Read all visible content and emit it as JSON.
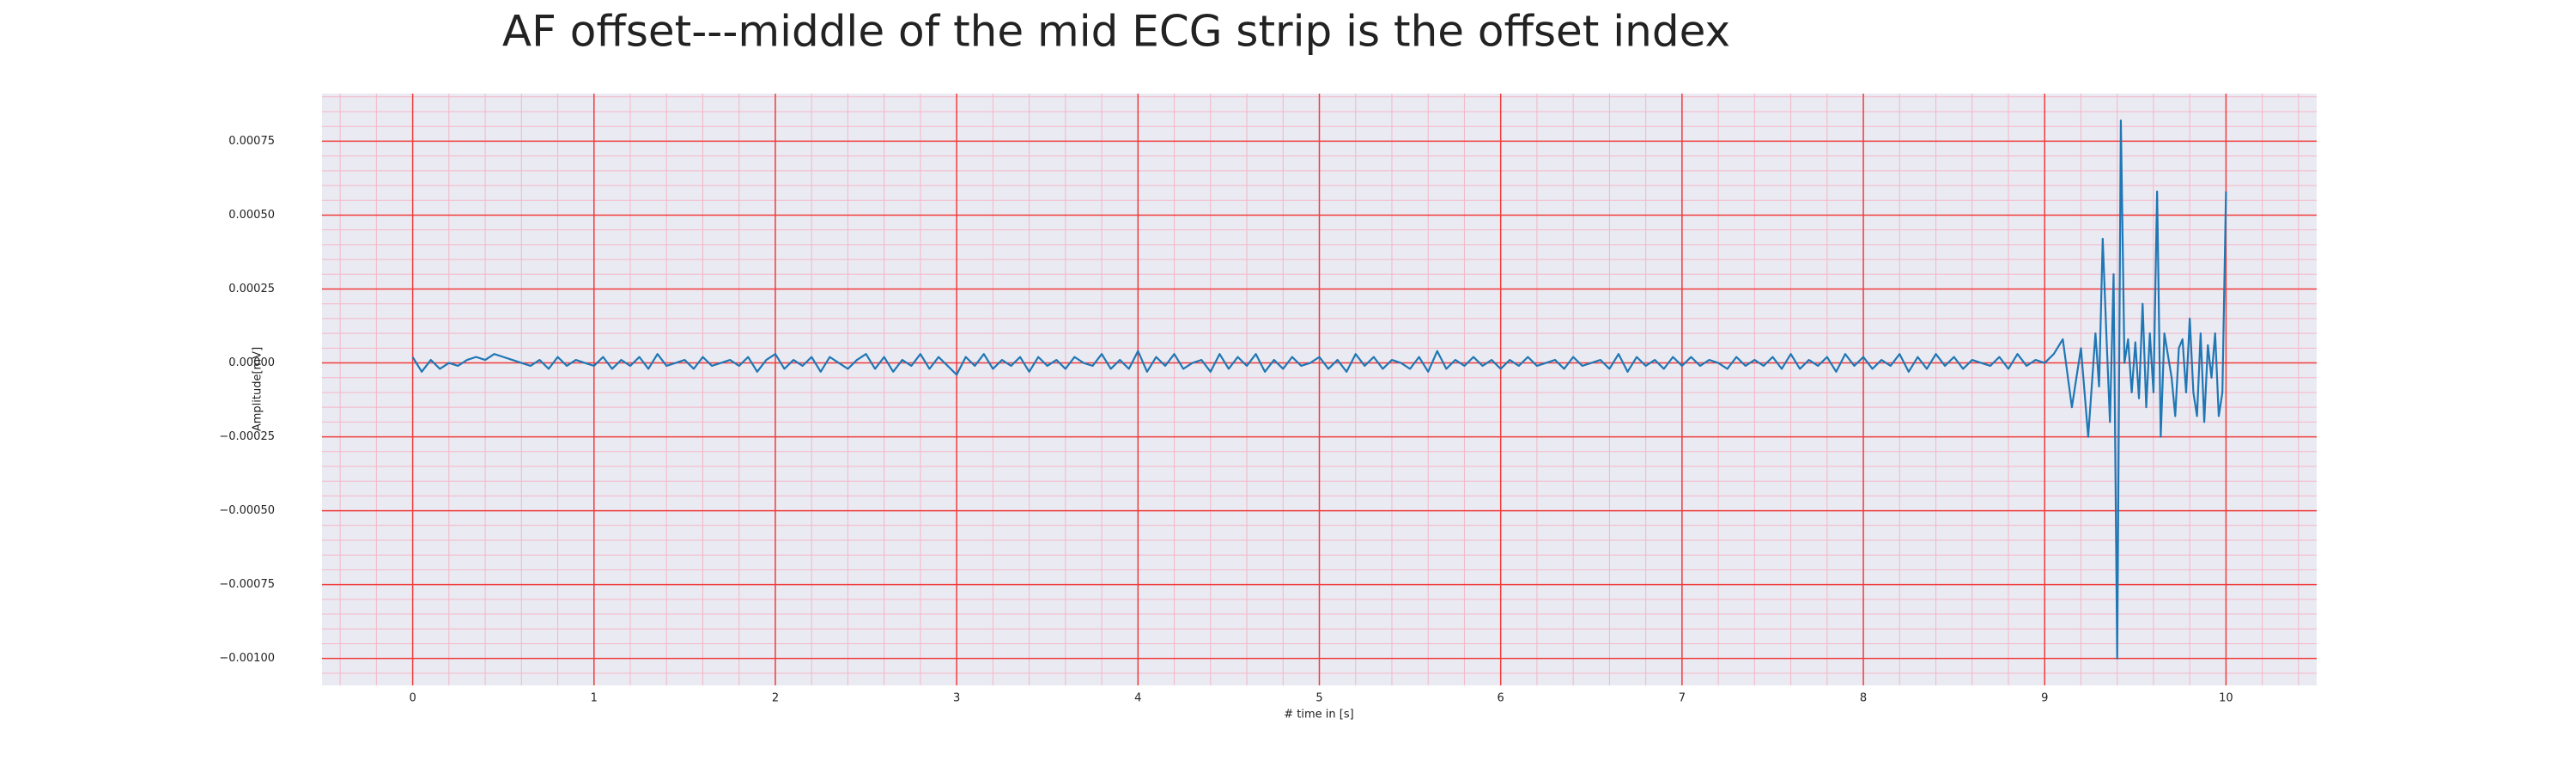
{
  "chart_data": {
    "type": "line",
    "title": "AF offset---middle of the mid ECG strip is the offset index",
    "xlabel": "# time in [s]",
    "ylabel": "Amplitude[mV]",
    "color": "#1f77b4",
    "grid": true,
    "xlim": [
      -0.5,
      10.5
    ],
    "ylim": [
      -0.001091,
      0.000911
    ],
    "xticks": [
      0,
      1,
      2,
      3,
      4,
      5,
      6,
      7,
      8,
      9,
      10
    ],
    "yticks": [
      {
        "value": -0.001,
        "label": "−0.00100"
      },
      {
        "value": -0.00075,
        "label": "−0.00075"
      },
      {
        "value": -0.0005,
        "label": "−0.00050"
      },
      {
        "value": -0.00025,
        "label": "−0.00025"
      },
      {
        "value": 0,
        "label": "0.00000"
      },
      {
        "value": 0.00025,
        "label": "0.00025"
      },
      {
        "value": 0.0005,
        "label": "0.00050"
      },
      {
        "value": 0.00075,
        "label": "0.00075"
      }
    ],
    "x": [
      0,
      0.05,
      0.1,
      0.15,
      0.2,
      0.25,
      0.3,
      0.35,
      0.4,
      0.45,
      0.5,
      0.55,
      0.6,
      0.65,
      0.7,
      0.75,
      0.8,
      0.85,
      0.9,
      0.95,
      1,
      1.05,
      1.1,
      1.15,
      1.2,
      1.25,
      1.3,
      1.35,
      1.4,
      1.45,
      1.5,
      1.55,
      1.6,
      1.65,
      1.7,
      1.75,
      1.8,
      1.85,
      1.9,
      1.95,
      2,
      2.05,
      2.1,
      2.15,
      2.2,
      2.25,
      2.3,
      2.35,
      2.4,
      2.45,
      2.5,
      2.55,
      2.6,
      2.65,
      2.7,
      2.75,
      2.8,
      2.85,
      2.9,
      2.95,
      3,
      3.05,
      3.1,
      3.15,
      3.2,
      3.25,
      3.3,
      3.35,
      3.4,
      3.45,
      3.5,
      3.55,
      3.6,
      3.65,
      3.7,
      3.75,
      3.8,
      3.85,
      3.9,
      3.95,
      4,
      4.05,
      4.1,
      4.15,
      4.2,
      4.25,
      4.3,
      4.35,
      4.4,
      4.45,
      4.5,
      4.55,
      4.6,
      4.65,
      4.7,
      4.75,
      4.8,
      4.85,
      4.9,
      4.95,
      5,
      5.05,
      5.1,
      5.15,
      5.2,
      5.25,
      5.3,
      5.35,
      5.4,
      5.45,
      5.5,
      5.55,
      5.6,
      5.65,
      5.7,
      5.75,
      5.8,
      5.85,
      5.9,
      5.95,
      6,
      6.05,
      6.1,
      6.15,
      6.2,
      6.25,
      6.3,
      6.35,
      6.4,
      6.45,
      6.5,
      6.55,
      6.6,
      6.65,
      6.7,
      6.75,
      6.8,
      6.85,
      6.9,
      6.95,
      7,
      7.05,
      7.1,
      7.15,
      7.2,
      7.25,
      7.3,
      7.35,
      7.4,
      7.45,
      7.5,
      7.55,
      7.6,
      7.65,
      7.7,
      7.75,
      7.8,
      7.85,
      7.9,
      7.95,
      8,
      8.05,
      8.1,
      8.15,
      8.2,
      8.25,
      8.3,
      8.35,
      8.4,
      8.45,
      8.5,
      8.55,
      8.6,
      8.65,
      8.7,
      8.75,
      8.8,
      8.85,
      8.9,
      8.95,
      9,
      9.05,
      9.1,
      9.15,
      9.2,
      9.24,
      9.28,
      9.3,
      9.32,
      9.34,
      9.36,
      9.38,
      9.4,
      9.42,
      9.44,
      9.46,
      9.48,
      9.5,
      9.52,
      9.54,
      9.56,
      9.58,
      9.6,
      9.62,
      9.64,
      9.66,
      9.7,
      9.72,
      9.74,
      9.76,
      9.78,
      9.8,
      9.82,
      9.84,
      9.86,
      9.88,
      9.9,
      9.92,
      9.94,
      9.96,
      9.98,
      10
    ],
    "values": [
      2e-05,
      -3e-05,
      1e-05,
      -2e-05,
      0,
      -1e-05,
      1e-05,
      2e-05,
      1e-05,
      3e-05,
      2e-05,
      1e-05,
      0,
      -1e-05,
      1e-05,
      -2e-05,
      2e-05,
      -1e-05,
      1e-05,
      0,
      -1e-05,
      2e-05,
      -2e-05,
      1e-05,
      -1e-05,
      2e-05,
      -2e-05,
      3e-05,
      -1e-05,
      0,
      1e-05,
      -2e-05,
      2e-05,
      -1e-05,
      0,
      1e-05,
      -1e-05,
      2e-05,
      -3e-05,
      1e-05,
      3e-05,
      -2e-05,
      1e-05,
      -1e-05,
      2e-05,
      -3e-05,
      2e-05,
      0,
      -2e-05,
      1e-05,
      3e-05,
      -2e-05,
      2e-05,
      -3e-05,
      1e-05,
      -1e-05,
      3e-05,
      -2e-05,
      2e-05,
      -1e-05,
      -4e-05,
      2e-05,
      -1e-05,
      3e-05,
      -2e-05,
      1e-05,
      -1e-05,
      2e-05,
      -3e-05,
      2e-05,
      -1e-05,
      1e-05,
      -2e-05,
      2e-05,
      0,
      -1e-05,
      3e-05,
      -2e-05,
      1e-05,
      -2e-05,
      4e-05,
      -3e-05,
      2e-05,
      -1e-05,
      3e-05,
      -2e-05,
      0,
      1e-05,
      -3e-05,
      3e-05,
      -2e-05,
      2e-05,
      -1e-05,
      3e-05,
      -3e-05,
      1e-05,
      -2e-05,
      2e-05,
      -1e-05,
      0,
      2e-05,
      -2e-05,
      1e-05,
      -3e-05,
      3e-05,
      -1e-05,
      2e-05,
      -2e-05,
      1e-05,
      0,
      -2e-05,
      2e-05,
      -3e-05,
      4e-05,
      -2e-05,
      1e-05,
      -1e-05,
      2e-05,
      -1e-05,
      1e-05,
      -2e-05,
      1e-05,
      -1e-05,
      2e-05,
      -1e-05,
      0,
      1e-05,
      -2e-05,
      2e-05,
      -1e-05,
      0,
      1e-05,
      -2e-05,
      3e-05,
      -3e-05,
      2e-05,
      -1e-05,
      1e-05,
      -2e-05,
      2e-05,
      -1e-05,
      2e-05,
      -1e-05,
      1e-05,
      0,
      -2e-05,
      2e-05,
      -1e-05,
      1e-05,
      -1e-05,
      2e-05,
      -2e-05,
      3e-05,
      -2e-05,
      1e-05,
      -1e-05,
      2e-05,
      -3e-05,
      3e-05,
      -1e-05,
      2e-05,
      -2e-05,
      1e-05,
      -1e-05,
      3e-05,
      -3e-05,
      2e-05,
      -2e-05,
      3e-05,
      -1e-05,
      2e-05,
      -2e-05,
      1e-05,
      0,
      -1e-05,
      2e-05,
      -2e-05,
      3e-05,
      -1e-05,
      1e-05,
      0,
      3e-05,
      8e-05,
      -0.00015,
      5e-05,
      -0.00025,
      0.0001,
      -8e-05,
      0.00042,
      0.0001,
      -0.0002,
      0.0003,
      -0.001,
      0.00082,
      0,
      8e-05,
      -0.0001,
      7e-05,
      -0.00012,
      0.0002,
      -0.00015,
      0.0001,
      -0.0001,
      0.00058,
      -0.00025,
      0.0001,
      -5e-05,
      -0.00018,
      5e-05,
      8e-05,
      -0.0001,
      0.00015,
      -0.0001,
      -0.00018,
      0.0001,
      -0.0002,
      6e-05,
      -5e-05,
      0.0001,
      -0.00018,
      -0.0001,
      0.00058
    ]
  }
}
